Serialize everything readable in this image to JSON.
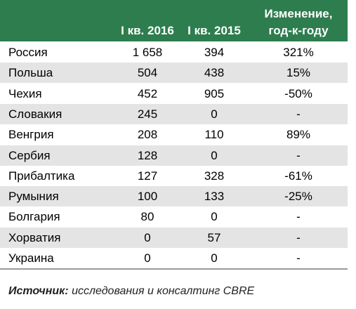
{
  "table": {
    "header": {
      "col1": "I кв. 2016",
      "col2": "I кв. 2015",
      "col3": [
        "Изменение,",
        "год-к-году"
      ]
    },
    "rows": [
      [
        "Россия",
        "1 658",
        "394",
        "321%"
      ],
      [
        "Польша",
        "504",
        "438",
        "15%"
      ],
      [
        "Чехия",
        "452",
        "905",
        "-50%"
      ],
      [
        "Словакия",
        "245",
        "0",
        "-"
      ],
      [
        "Венгрия",
        "208",
        "110",
        "89%"
      ],
      [
        "Сербия",
        "128",
        "0",
        "-"
      ],
      [
        "Прибалтика",
        "127",
        "328",
        "-61%"
      ],
      [
        "Румыния",
        "100",
        "133",
        "-25%"
      ],
      [
        "Болгария",
        "80",
        "0",
        "-"
      ],
      [
        "Хорватия",
        "0",
        "57",
        "-"
      ],
      [
        "Украина",
        "0",
        "0",
        "-"
      ]
    ]
  },
  "source": {
    "label": "Источник:",
    "text": "исследования и консалтинг CBRE"
  }
}
